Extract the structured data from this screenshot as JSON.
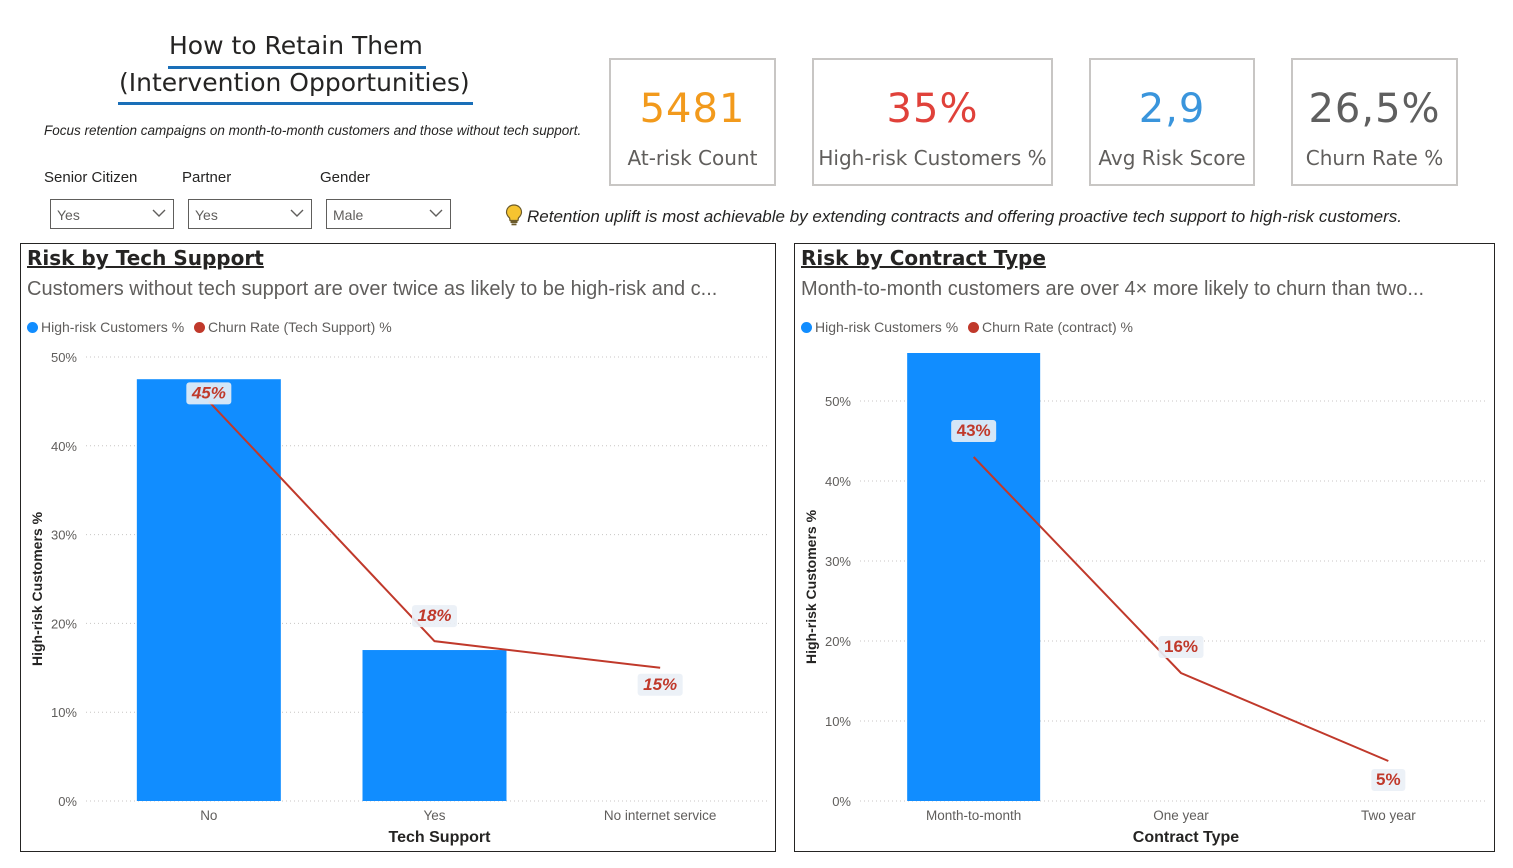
{
  "header": {
    "title_line1": "How to Retain Them",
    "title_line2": "(Intervention Opportunities)",
    "description": "Focus retention campaigns on month-to-month customers and those without tech support."
  },
  "slicers": [
    {
      "label": "Senior Citizen",
      "value": "Yes"
    },
    {
      "label": "Partner",
      "value": "Yes"
    },
    {
      "label": "Gender",
      "value": "Male"
    }
  ],
  "kpis": [
    {
      "value": "5481",
      "label": "At-risk Count",
      "color": "#f29a1c"
    },
    {
      "value": "35%",
      "label": "High-risk Customers %",
      "color": "#e0413a"
    },
    {
      "value": "2,9",
      "label": "Avg Risk Score",
      "color": "#3a95dc"
    },
    {
      "value": "26,5%",
      "label": "Churn Rate %",
      "color": "#5f5f5f"
    }
  ],
  "insight": {
    "icon": "lightbulb-icon",
    "text": "Retention uplift is most achievable by extending contracts and offering proactive tech support to high-risk customers."
  },
  "colors": {
    "bar": "#118dff",
    "line": "#c0392b",
    "grid": "#c8c6c4"
  },
  "chart_data": [
    {
      "type": "bar",
      "title": "Risk by Tech Support",
      "subtitle": "Customers without tech support are over twice as likely to be high-risk and c...",
      "legend": [
        "High-risk Customers %",
        "Churn Rate (Tech Support) %"
      ],
      "legend_position": "top-left",
      "xlabel": "Tech Support",
      "ylabel": "High-risk Customers %",
      "categories": [
        "No",
        "Yes",
        "No internet service"
      ],
      "yticks": [
        "0%",
        "10%",
        "20%",
        "30%",
        "40%",
        "50%"
      ],
      "ylim": [
        0,
        50
      ],
      "grid": true,
      "series": [
        {
          "name": "High-risk Customers %",
          "type": "bar",
          "values": [
            47.5,
            17,
            0
          ]
        },
        {
          "name": "Churn Rate (Tech Support) %",
          "type": "line",
          "values": [
            45,
            18,
            15
          ],
          "labels": [
            "45%",
            "18%",
            "15%"
          ]
        }
      ]
    },
    {
      "type": "bar",
      "title": "Risk by Contract Type",
      "subtitle": "Month-to-month customers are over 4× more likely to churn than two...",
      "legend": [
        "High-risk Customers %",
        "Churn Rate (contract) %"
      ],
      "legend_position": "top-left",
      "xlabel": "Contract Type",
      "ylabel": "High-risk Customers %",
      "categories": [
        "Month-to-month",
        "One year",
        "Two year"
      ],
      "yticks": [
        "0%",
        "10%",
        "20%",
        "30%",
        "40%",
        "50%"
      ],
      "ylim": [
        0,
        56
      ],
      "grid": true,
      "series": [
        {
          "name": "High-risk Customers %",
          "type": "bar",
          "values": [
            56,
            0,
            0
          ]
        },
        {
          "name": "Churn Rate (contract) %",
          "type": "line",
          "values": [
            43,
            16,
            5
          ],
          "labels": [
            "43%",
            "16%",
            "5%"
          ]
        }
      ]
    }
  ]
}
